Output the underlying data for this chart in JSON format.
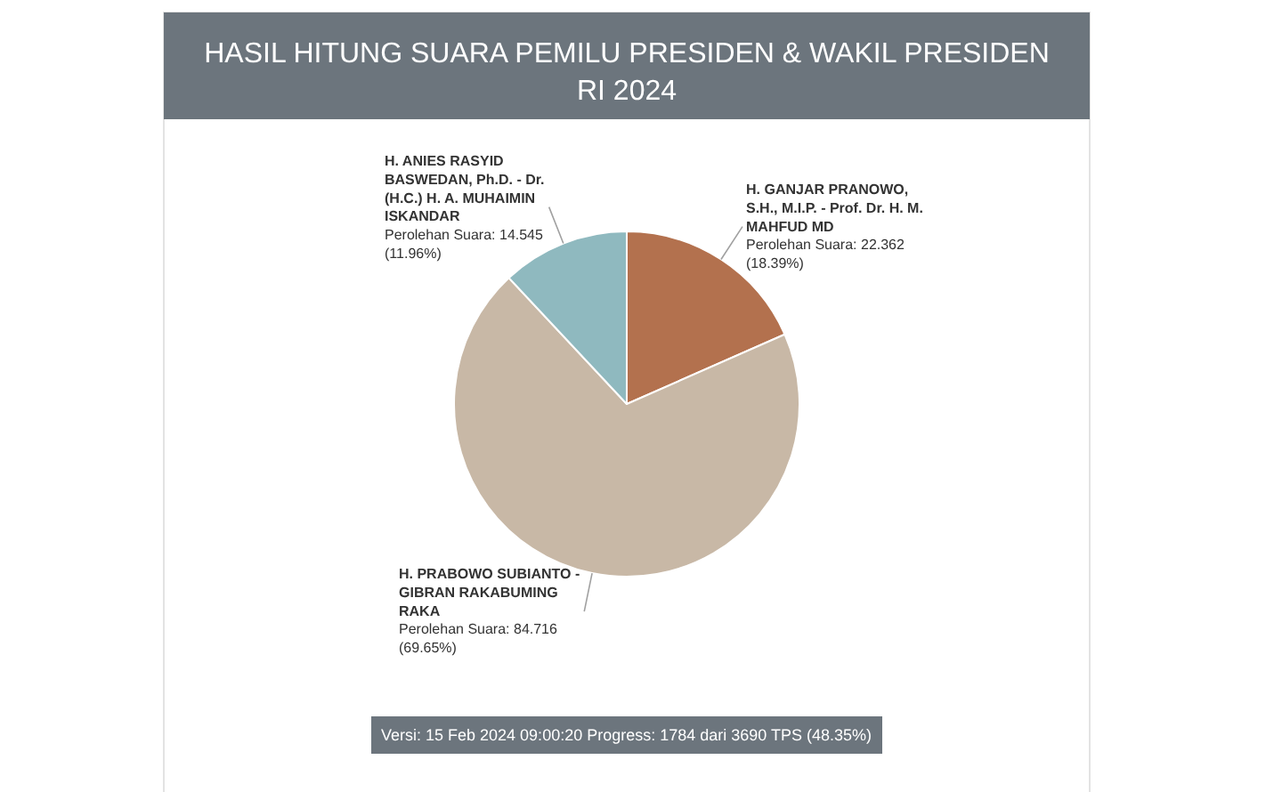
{
  "chart_data": {
    "type": "pie",
    "title": "HASIL HITUNG SUARA PEMILU PRESIDEN & WAKIL PRESIDEN RI 2024",
    "categories": [
      "H. GANJAR PRANOWO,\nS.H., M.I.P. - Prof. Dr. H. M.\nMAHFUD MD",
      "H. PRABOWO SUBIANTO -\nGIBRAN RAKABUMING\nRAKA",
      "H. ANIES RASYID\nBASWEDAN, Ph.D. - Dr.\n(H.C.) H. A. MUHAIMIN\nISKANDAR"
    ],
    "values": [
      18.39,
      69.65,
      11.96
    ],
    "value_labels": [
      "Perolehan Suara: 22.362\n(18.39%)",
      "Perolehan Suara: 84.716\n(69.65%)",
      "Perolehan Suara: 14.545\n(11.96%)"
    ],
    "colors": [
      "#b3714e",
      "#c8b8a6",
      "#8fb9bf"
    ],
    "annotations": [
      "Versi: 15 Feb 2024 09:00:20 Progress: 1784 dari 3690 TPS (48.35%)"
    ]
  }
}
